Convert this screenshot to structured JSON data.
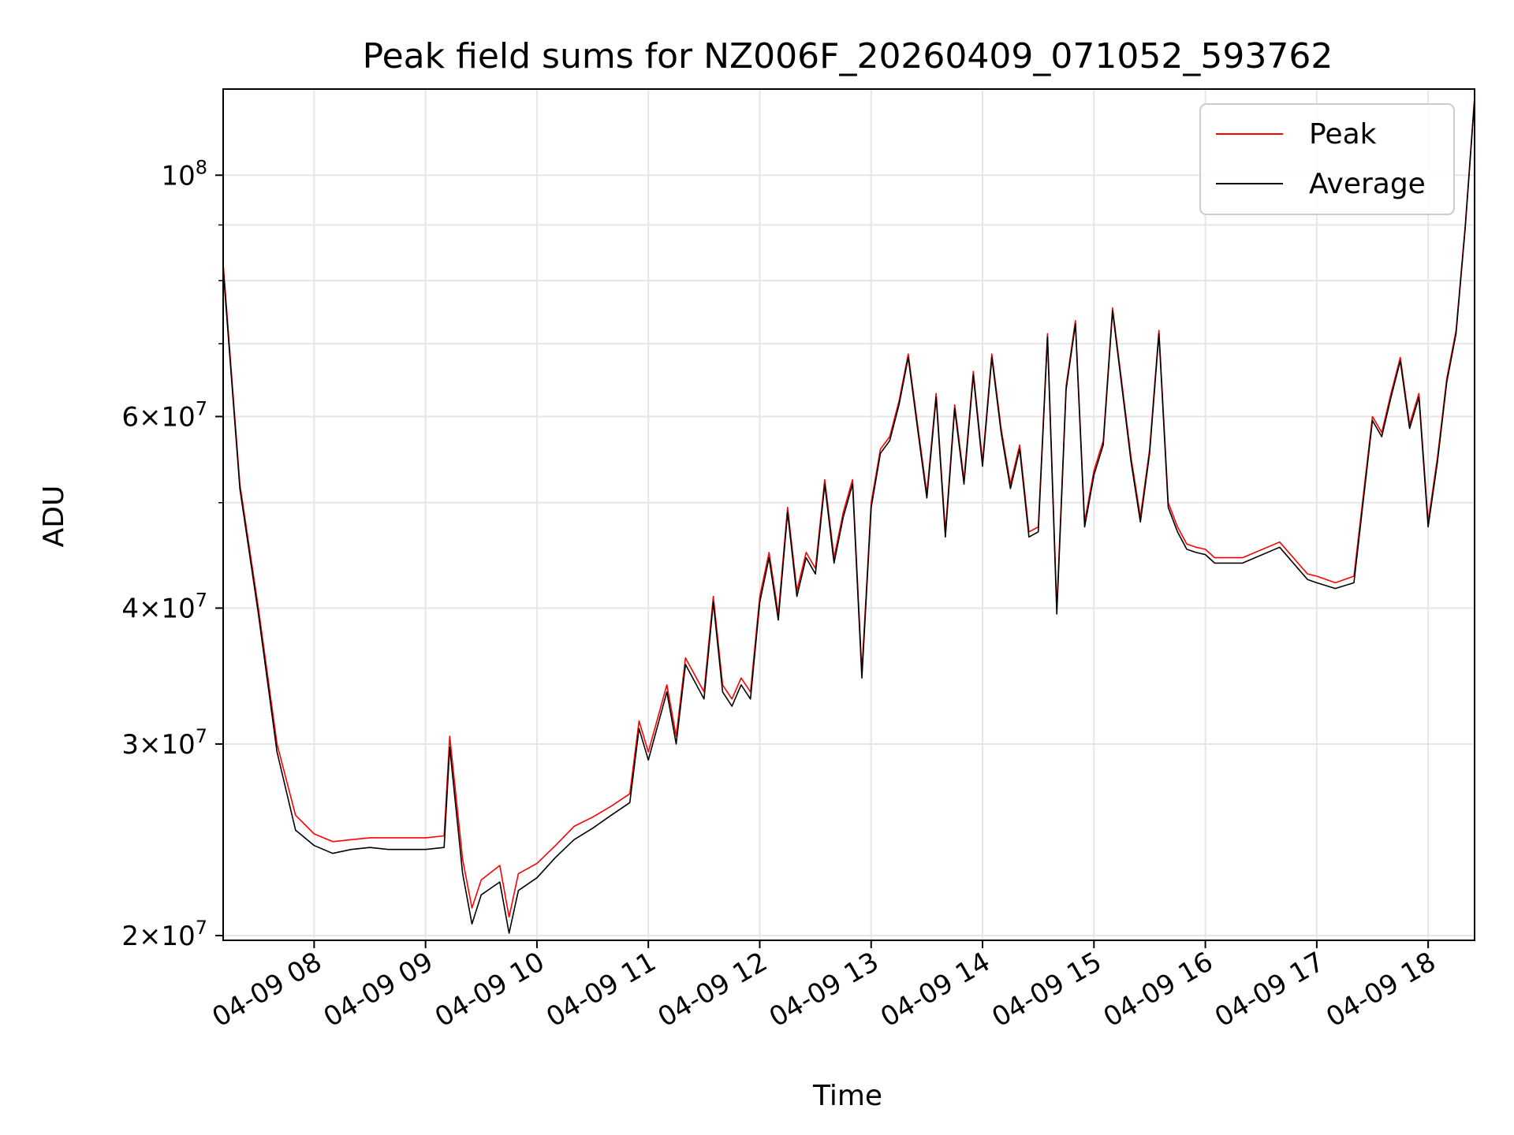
{
  "chart_data": {
    "type": "line",
    "title": "Peak field sums for NZ006F_20260409_071052_593762",
    "xlabel": "Time",
    "ylabel": "ADU",
    "yscale": "log",
    "ylim": [
      19800000,
      120000000
    ],
    "xlim": [
      "2026-04-09 07:11",
      "2026-04-09 18:25"
    ],
    "grid": true,
    "legend_position": "top-right",
    "x_ticks": [
      "2026-04-09 08:00",
      "2026-04-09 09:00",
      "2026-04-09 10:00",
      "2026-04-09 11:00",
      "2026-04-09 12:00",
      "2026-04-09 13:00",
      "2026-04-09 14:00",
      "2026-04-09 15:00",
      "2026-04-09 16:00",
      "2026-04-09 17:00",
      "2026-04-09 18:00"
    ],
    "x_tick_labels": [
      "04-09 08",
      "04-09 09",
      "04-09 10",
      "04-09 11",
      "04-09 12",
      "04-09 13",
      "04-09 14",
      "04-09 15",
      "04-09 16",
      "04-09 17",
      "04-09 18"
    ],
    "y_ticks": [
      {
        "value": 20000000,
        "base": "2",
        "exp": "7"
      },
      {
        "value": 30000000,
        "base": "3",
        "exp": "7"
      },
      {
        "value": 40000000,
        "base": "4",
        "exp": "7"
      },
      {
        "value": 60000000,
        "base": "6",
        "exp": "7"
      },
      {
        "value": 100000000,
        "base": "",
        "exp": "8"
      }
    ],
    "y_minor_ticks": [
      50000000,
      70000000,
      80000000,
      90000000
    ],
    "x": [
      "2026-04-09 07:11",
      "2026-04-09 07:20",
      "2026-04-09 07:30",
      "2026-04-09 07:40",
      "2026-04-09 07:50",
      "2026-04-09 08:00",
      "2026-04-09 08:10",
      "2026-04-09 08:20",
      "2026-04-09 08:30",
      "2026-04-09 08:40",
      "2026-04-09 08:50",
      "2026-04-09 09:00",
      "2026-04-09 09:10",
      "2026-04-09 09:13",
      "2026-04-09 09:20",
      "2026-04-09 09:25",
      "2026-04-09 09:30",
      "2026-04-09 09:40",
      "2026-04-09 09:45",
      "2026-04-09 09:50",
      "2026-04-09 10:00",
      "2026-04-09 10:10",
      "2026-04-09 10:20",
      "2026-04-09 10:30",
      "2026-04-09 10:40",
      "2026-04-09 10:50",
      "2026-04-09 10:55",
      "2026-04-09 11:00",
      "2026-04-09 11:10",
      "2026-04-09 11:15",
      "2026-04-09 11:20",
      "2026-04-09 11:30",
      "2026-04-09 11:35",
      "2026-04-09 11:40",
      "2026-04-09 11:45",
      "2026-04-09 11:50",
      "2026-04-09 11:55",
      "2026-04-09 12:00",
      "2026-04-09 12:05",
      "2026-04-09 12:10",
      "2026-04-09 12:15",
      "2026-04-09 12:20",
      "2026-04-09 12:25",
      "2026-04-09 12:30",
      "2026-04-09 12:35",
      "2026-04-09 12:40",
      "2026-04-09 12:45",
      "2026-04-09 12:50",
      "2026-04-09 12:55",
      "2026-04-09 13:00",
      "2026-04-09 13:05",
      "2026-04-09 13:10",
      "2026-04-09 13:15",
      "2026-04-09 13:20",
      "2026-04-09 13:25",
      "2026-04-09 13:30",
      "2026-04-09 13:35",
      "2026-04-09 13:40",
      "2026-04-09 13:45",
      "2026-04-09 13:50",
      "2026-04-09 13:55",
      "2026-04-09 14:00",
      "2026-04-09 14:05",
      "2026-04-09 14:10",
      "2026-04-09 14:15",
      "2026-04-09 14:20",
      "2026-04-09 14:25",
      "2026-04-09 14:30",
      "2026-04-09 14:35",
      "2026-04-09 14:40",
      "2026-04-09 14:45",
      "2026-04-09 14:50",
      "2026-04-09 14:55",
      "2026-04-09 15:00",
      "2026-04-09 15:05",
      "2026-04-09 15:10",
      "2026-04-09 15:15",
      "2026-04-09 15:20",
      "2026-04-09 15:25",
      "2026-04-09 15:30",
      "2026-04-09 15:35",
      "2026-04-09 15:40",
      "2026-04-09 15:45",
      "2026-04-09 15:50",
      "2026-04-09 15:55",
      "2026-04-09 16:00",
      "2026-04-09 16:05",
      "2026-04-09 16:20",
      "2026-04-09 16:40",
      "2026-04-09 16:55",
      "2026-04-09 17:00",
      "2026-04-09 17:10",
      "2026-04-09 17:20",
      "2026-04-09 17:30",
      "2026-04-09 17:35",
      "2026-04-09 17:40",
      "2026-04-09 17:45",
      "2026-04-09 17:50",
      "2026-04-09 17:55",
      "2026-04-09 18:00",
      "2026-04-09 18:05",
      "2026-04-09 18:10",
      "2026-04-09 18:15",
      "2026-04-09 18:20",
      "2026-04-09 18:25"
    ],
    "series": [
      {
        "name": "Peak",
        "color": "#ff0000",
        "values": [
          83000000,
          52000000,
          40000000,
          30000000,
          25800000,
          24800000,
          24400000,
          24500000,
          24600000,
          24600000,
          24600000,
          24600000,
          24700000,
          30500000,
          23500000,
          21200000,
          22500000,
          23200000,
          20800000,
          22800000,
          23300000,
          24200000,
          25200000,
          25700000,
          26300000,
          27000000,
          31500000,
          29500000,
          34000000,
          30500000,
          36000000,
          33500000,
          41000000,
          34000000,
          33000000,
          34500000,
          33500000,
          41000000,
          45000000,
          39500000,
          49500000,
          41500000,
          45000000,
          43500000,
          52500000,
          44500000,
          49000000,
          52500000,
          35000000,
          50000000,
          56000000,
          57500000,
          62000000,
          68500000,
          59000000,
          51000000,
          63000000,
          47000000,
          61500000,
          52500000,
          66000000,
          54500000,
          68500000,
          58500000,
          52000000,
          56500000,
          47000000,
          47500000,
          71500000,
          40000000,
          64000000,
          73500000,
          48000000,
          53500000,
          57000000,
          75500000,
          64500000,
          55000000,
          48500000,
          56000000,
          72000000,
          50000000,
          47500000,
          45800000,
          45500000,
          45300000,
          44500000,
          44500000,
          46000000,
          43000000,
          42800000,
          42200000,
          42800000,
          60000000,
          58000000,
          63000000,
          68000000,
          59000000,
          63000000,
          48000000,
          55000000,
          65000000,
          72000000,
          90000000,
          118000000
        ]
      },
      {
        "name": "Average",
        "color": "#000000",
        "values": [
          82000000,
          51500000,
          39500000,
          29500000,
          25000000,
          24200000,
          23800000,
          24000000,
          24100000,
          24000000,
          24000000,
          24000000,
          24100000,
          29800000,
          22800000,
          20500000,
          21800000,
          22400000,
          20100000,
          22000000,
          22600000,
          23600000,
          24500000,
          25100000,
          25800000,
          26500000,
          31000000,
          29000000,
          33500000,
          30000000,
          35500000,
          33000000,
          40500000,
          33500000,
          32500000,
          34000000,
          33000000,
          40500000,
          44500000,
          39000000,
          49000000,
          41000000,
          44500000,
          43000000,
          52000000,
          44000000,
          48500000,
          52000000,
          34500000,
          49500000,
          55500000,
          57000000,
          61500000,
          68000000,
          58500000,
          50500000,
          62500000,
          46500000,
          61000000,
          52000000,
          65500000,
          54000000,
          68000000,
          58000000,
          51500000,
          56000000,
          46500000,
          47000000,
          71000000,
          39500000,
          63500000,
          73000000,
          47500000,
          53000000,
          56500000,
          75000000,
          64000000,
          54500000,
          48000000,
          55500000,
          71500000,
          49500000,
          47000000,
          45300000,
          45000000,
          44800000,
          44000000,
          44000000,
          45500000,
          42500000,
          42200000,
          41700000,
          42200000,
          59500000,
          57500000,
          62500000,
          67500000,
          58500000,
          62500000,
          47500000,
          54500000,
          64500000,
          71500000,
          89500000,
          117500000
        ]
      }
    ]
  }
}
